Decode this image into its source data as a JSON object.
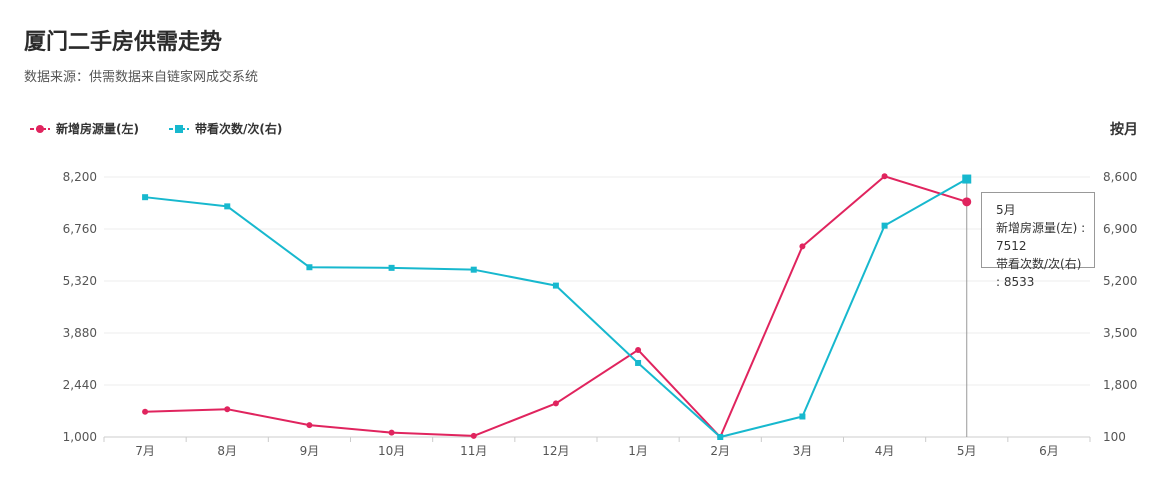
{
  "page": {
    "title": "厦门二手房供需走势",
    "subtitle": "数据来源：供需数据来自链家网成交系统",
    "period_label": "按月"
  },
  "colors": {
    "series1": "#e0245e",
    "series2": "#17b8ce"
  },
  "chart_data": {
    "type": "line",
    "categories": [
      "7月",
      "8月",
      "9月",
      "10月",
      "11月",
      "12月",
      "1月",
      "2月",
      "3月",
      "4月",
      "5月",
      "6月"
    ],
    "series": [
      {
        "name": "新增房源量(左)",
        "axis": "left",
        "marker": "circle",
        "values": [
          1700,
          1770,
          1330,
          1120,
          1030,
          1930,
          3410,
          1000,
          6280,
          8220,
          7512,
          null
        ]
      },
      {
        "name": "带看次数/次(右)",
        "axis": "right",
        "marker": "square",
        "values": [
          7940,
          7640,
          5650,
          5630,
          5570,
          5050,
          2520,
          100,
          770,
          7010,
          8533,
          null
        ]
      }
    ],
    "y_left": {
      "min": 1000,
      "max": 8200,
      "ticks": [
        "1,000",
        "2,440",
        "3,880",
        "5,320",
        "6,760",
        "8,200"
      ]
    },
    "y_right": {
      "min": 100,
      "max": 8600,
      "ticks": [
        "100",
        "1,800",
        "3,500",
        "5,200",
        "6,900",
        "8,600"
      ]
    },
    "grid": true,
    "legend_position": "top-left"
  },
  "tooltip": {
    "title": "5月",
    "line1": "新增房源量(左) : 7512",
    "line2": "带看次数/次(右) : 8533"
  }
}
